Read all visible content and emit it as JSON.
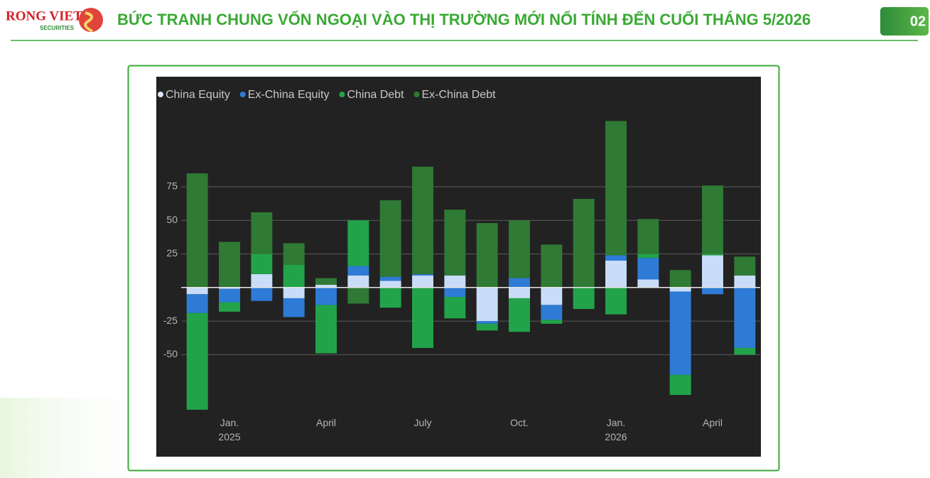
{
  "header": {
    "logo": "RONG VIET",
    "logo_sub": "SECURITIES",
    "title": "BỨC TRANH CHUNG VỐN NGOẠI VÀO THỊ TRƯỜNG MỚI NỔI TÍNH ĐẾN CUỐI THÁNG 5/2026",
    "page": "02"
  },
  "chart_data": {
    "type": "bar",
    "stacked": true,
    "grid": true,
    "legend": "top-left",
    "categories": [
      null,
      "Jan.\n2025",
      null,
      null,
      "April",
      null,
      null,
      "July",
      null,
      null,
      "Oct.",
      null,
      null,
      "Jan.\n2026",
      null,
      null,
      "April",
      null
    ],
    "series": [
      {
        "name": "China Equity",
        "color": "#c9dcf8",
        "values": [
          -5,
          -1,
          10,
          -8,
          2,
          9,
          5,
          9,
          9,
          -25,
          -8,
          -13,
          0,
          20,
          6,
          -3,
          24,
          9
        ]
      },
      {
        "name": "Ex-China Equity",
        "color": "#2e7bd6",
        "values": [
          -14,
          -10,
          -10,
          -14,
          -13,
          7,
          3,
          1,
          -7,
          -2,
          7,
          -11,
          0,
          4,
          16,
          -62,
          -5,
          -45
        ]
      },
      {
        "name": "China Debt",
        "color": "#22a34a",
        "values": [
          -72,
          -7,
          15,
          17,
          -36,
          34,
          -15,
          -45,
          -16,
          -5,
          -25,
          -3,
          -16,
          -20,
          3,
          -15,
          1,
          -5
        ]
      },
      {
        "name": "Ex-China Debt",
        "color": "#2f7a35",
        "values": [
          85,
          34,
          31,
          16,
          5,
          -12,
          57,
          80,
          49,
          48,
          43,
          32,
          66,
          100,
          26,
          13,
          51,
          14
        ]
      }
    ],
    "ylim": [
      -126,
      157
    ],
    "yticks": [
      -50,
      -25,
      25,
      50,
      75
    ]
  }
}
